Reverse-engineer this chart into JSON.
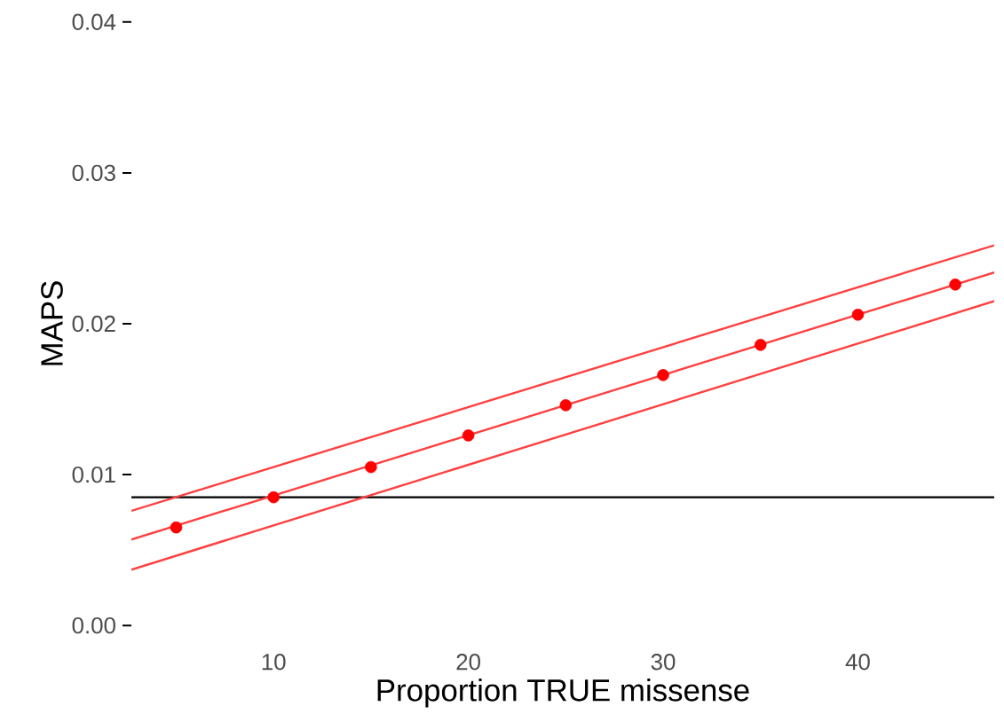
{
  "chart_data": {
    "type": "scatter",
    "xlabel": "Proportion TRUE missense",
    "ylabel": "MAPS",
    "xlim": [
      2.7,
      47
    ],
    "ylim": [
      0,
      0.04
    ],
    "xticks": [
      10,
      20,
      30,
      40
    ],
    "yticks": [
      {
        "value": 0,
        "label": "0.00"
      },
      {
        "value": 0.01,
        "label": "0.01"
      },
      {
        "value": 0.02,
        "label": "0.02"
      },
      {
        "value": 0.03,
        "label": "0.03"
      },
      {
        "value": 0.04,
        "label": "0.04"
      }
    ],
    "grid": false,
    "series": [
      {
        "type": "line",
        "color": "#ff4040",
        "line_style": "solid",
        "x": [
          2.7,
          47
        ],
        "values": [
          0.0057,
          0.0234
        ]
      },
      {
        "type": "line",
        "color": "#ff4040",
        "line_style": "solid",
        "x": [
          2.7,
          47
        ],
        "values": [
          0.0076,
          0.0252
        ]
      },
      {
        "type": "line",
        "color": "#ff4040",
        "line_style": "solid",
        "x": [
          2.7,
          47
        ],
        "values": [
          0.0037,
          0.0215
        ]
      },
      {
        "color": "#ff0000",
        "marker": "circle",
        "x": [
          5,
          10,
          15,
          20,
          25,
          30,
          35,
          40,
          45
        ],
        "values": [
          0.0065,
          0.0085,
          0.0105,
          0.0126,
          0.0146,
          0.0166,
          0.0186,
          0.0206,
          0.0226
        ]
      }
    ],
    "ref_lines": [
      {
        "axis": "y",
        "value": 0.0085,
        "color": "#000000",
        "line_style": "solid"
      }
    ]
  }
}
